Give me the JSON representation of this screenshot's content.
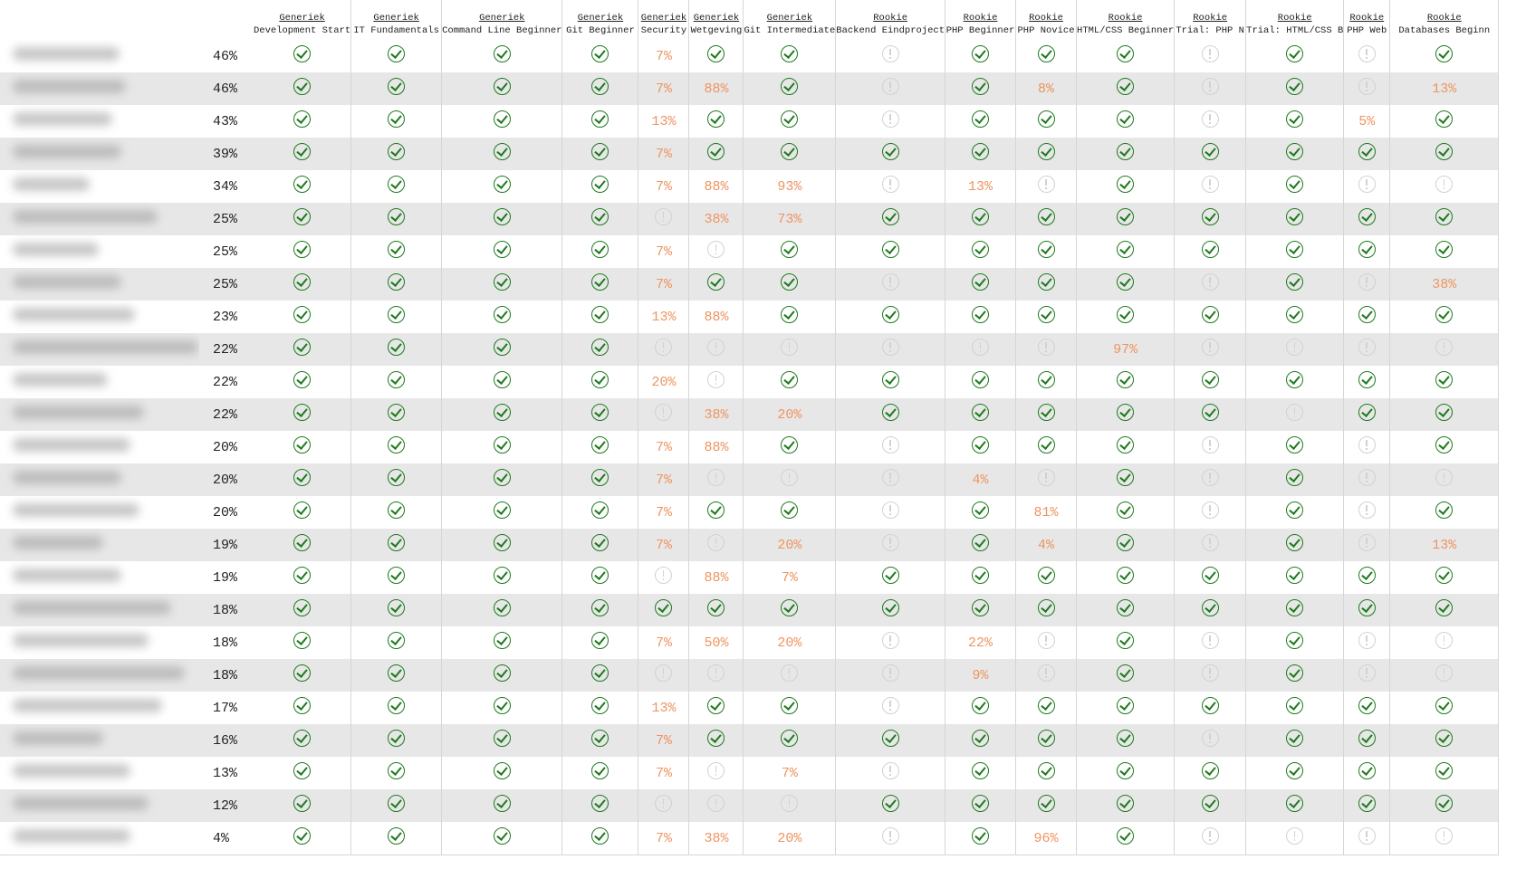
{
  "table": {
    "columns": [
      {
        "group": "Generiek",
        "title": "Development Start"
      },
      {
        "group": "Generiek",
        "title": "IT Fundamentals"
      },
      {
        "group": "Generiek",
        "title": "Command Line Beginner"
      },
      {
        "group": "Generiek",
        "title": "Git Beginner"
      },
      {
        "group": "Generiek",
        "title": "Security"
      },
      {
        "group": "Generiek",
        "title": "Wetgeving"
      },
      {
        "group": "Generiek",
        "title": "Git Intermediate"
      },
      {
        "group": "Rookie",
        "title": "Backend Eindproject"
      },
      {
        "group": "Rookie",
        "title": "PHP Beginner"
      },
      {
        "group": "Rookie",
        "title": "PHP Novice"
      },
      {
        "group": "Rookie",
        "title": "HTML/CSS Beginner"
      },
      {
        "group": "Rookie",
        "title": "Trial: PHP N"
      },
      {
        "group": "Rookie",
        "title": "Trial: HTML/CSS B"
      },
      {
        "group": "Rookie",
        "title": "PHP Web"
      },
      {
        "group": "Rookie",
        "title": "Databases Beginn"
      }
    ],
    "rows": [
      {
        "pct": "46%",
        "cells": [
          "done",
          "done",
          "done",
          "done",
          "7%",
          "done",
          "done",
          "todo",
          "done",
          "done",
          "done",
          "todo",
          "done",
          "todo",
          "done"
        ]
      },
      {
        "pct": "46%",
        "cells": [
          "done",
          "done",
          "done",
          "done",
          "7%",
          "88%",
          "done",
          "todo",
          "done",
          "8%",
          "done",
          "todo",
          "done",
          "todo",
          "13%"
        ]
      },
      {
        "pct": "43%",
        "cells": [
          "done",
          "done",
          "done",
          "done",
          "13%",
          "done",
          "done",
          "todo",
          "done",
          "done",
          "done",
          "todo",
          "done",
          "5%",
          "done"
        ]
      },
      {
        "pct": "39%",
        "cells": [
          "done",
          "done",
          "done",
          "done",
          "7%",
          "done",
          "done",
          "done",
          "done",
          "done",
          "done",
          "done",
          "done",
          "done",
          "done"
        ]
      },
      {
        "pct": "34%",
        "cells": [
          "done",
          "done",
          "done",
          "done",
          "7%",
          "88%",
          "93%",
          "todo",
          "13%",
          "todo",
          "done",
          "todo",
          "done",
          "todo",
          "todo"
        ]
      },
      {
        "pct": "25%",
        "cells": [
          "done",
          "done",
          "done",
          "done",
          "todo",
          "38%",
          "73%",
          "done",
          "done",
          "done",
          "done",
          "done",
          "done",
          "done",
          "done"
        ]
      },
      {
        "pct": "25%",
        "cells": [
          "done",
          "done",
          "done",
          "done",
          "7%",
          "todo",
          "done",
          "done",
          "done",
          "done",
          "done",
          "done",
          "done",
          "done",
          "done"
        ]
      },
      {
        "pct": "25%",
        "cells": [
          "done",
          "done",
          "done",
          "done",
          "7%",
          "done",
          "done",
          "todo",
          "done",
          "done",
          "done",
          "todo",
          "done",
          "todo",
          "38%"
        ]
      },
      {
        "pct": "23%",
        "cells": [
          "done",
          "done",
          "done",
          "done",
          "13%",
          "88%",
          "done",
          "done",
          "done",
          "done",
          "done",
          "done",
          "done",
          "done",
          "done"
        ]
      },
      {
        "pct": "22%",
        "cells": [
          "done",
          "done",
          "done",
          "done",
          "todo",
          "todo",
          "todo",
          "todo",
          "todo",
          "todo",
          "97%",
          "todo",
          "todo",
          "todo",
          "todo"
        ]
      },
      {
        "pct": "22%",
        "cells": [
          "done",
          "done",
          "done",
          "done",
          "20%",
          "todo",
          "done",
          "done",
          "done",
          "done",
          "done",
          "done",
          "done",
          "done",
          "done"
        ]
      },
      {
        "pct": "22%",
        "cells": [
          "done",
          "done",
          "done",
          "done",
          "todo",
          "38%",
          "20%",
          "done",
          "done",
          "done",
          "done",
          "done",
          "todo",
          "done",
          "done"
        ]
      },
      {
        "pct": "20%",
        "cells": [
          "done",
          "done",
          "done",
          "done",
          "7%",
          "88%",
          "done",
          "todo",
          "done",
          "done",
          "done",
          "todo",
          "done",
          "todo",
          "done"
        ]
      },
      {
        "pct": "20%",
        "cells": [
          "done",
          "done",
          "done",
          "done",
          "7%",
          "todo",
          "todo",
          "todo",
          "4%",
          "todo",
          "done",
          "todo",
          "done",
          "todo",
          "todo"
        ]
      },
      {
        "pct": "20%",
        "cells": [
          "done",
          "done",
          "done",
          "done",
          "7%",
          "done",
          "done",
          "todo",
          "done",
          "81%",
          "done",
          "todo",
          "done",
          "todo",
          "done"
        ]
      },
      {
        "pct": "19%",
        "cells": [
          "done",
          "done",
          "done",
          "done",
          "7%",
          "todo",
          "20%",
          "todo",
          "done",
          "4%",
          "done",
          "todo",
          "done",
          "todo",
          "13%"
        ]
      },
      {
        "pct": "19%",
        "cells": [
          "done",
          "done",
          "done",
          "done",
          "todo",
          "88%",
          "7%",
          "done",
          "done",
          "done",
          "done",
          "done",
          "done",
          "done",
          "done"
        ]
      },
      {
        "pct": "18%",
        "cells": [
          "done",
          "done",
          "done",
          "done",
          "done",
          "done",
          "done",
          "done",
          "done",
          "done",
          "done",
          "done",
          "done",
          "done",
          "done"
        ]
      },
      {
        "pct": "18%",
        "cells": [
          "done",
          "done",
          "done",
          "done",
          "7%",
          "50%",
          "20%",
          "todo",
          "22%",
          "todo",
          "done",
          "todo",
          "done",
          "todo",
          "todo"
        ]
      },
      {
        "pct": "18%",
        "cells": [
          "done",
          "done",
          "done",
          "done",
          "todo",
          "todo",
          "todo",
          "todo",
          "9%",
          "todo",
          "done",
          "todo",
          "done",
          "todo",
          "todo"
        ]
      },
      {
        "pct": "17%",
        "cells": [
          "done",
          "done",
          "done",
          "done",
          "13%",
          "done",
          "done",
          "todo",
          "done",
          "done",
          "done",
          "done",
          "done",
          "done",
          "done"
        ]
      },
      {
        "pct": "16%",
        "cells": [
          "done",
          "done",
          "done",
          "done",
          "7%",
          "done",
          "done",
          "done",
          "done",
          "done",
          "done",
          "todo",
          "done",
          "done",
          "done"
        ]
      },
      {
        "pct": "13%",
        "cells": [
          "done",
          "done",
          "done",
          "done",
          "7%",
          "todo",
          "7%",
          "todo",
          "done",
          "done",
          "done",
          "done",
          "done",
          "done",
          "done"
        ]
      },
      {
        "pct": "12%",
        "cells": [
          "done",
          "done",
          "done",
          "done",
          "todo",
          "todo",
          "todo",
          "done",
          "done",
          "done",
          "done",
          "done",
          "done",
          "done",
          "done"
        ]
      },
      {
        "pct": "4%",
        "cells": [
          "done",
          "done",
          "done",
          "done",
          "7%",
          "38%",
          "20%",
          "todo",
          "done",
          "96%",
          "done",
          "todo",
          "todo",
          "todo",
          "todo"
        ]
      }
    ]
  },
  "colors": {
    "done": "#1d7a1d",
    "todo": "#d2d2d2",
    "partial": "#ee9461",
    "stripe": "#e7e7e7",
    "grid": "#d6d6d6"
  }
}
